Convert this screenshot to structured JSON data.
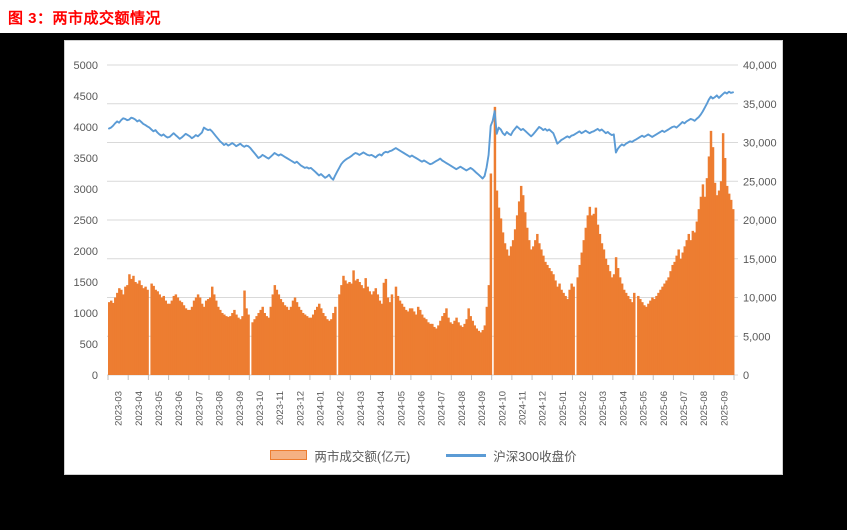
{
  "page": {
    "title": "图 3：两市成交额情况",
    "title_color": "#FF0000",
    "outside_background": "#000000",
    "card_background": "#FFFFFF"
  },
  "chart_data": {
    "type": "bar",
    "subtype": "combo-bar-line-dual-axis",
    "title": "两市成交额情况",
    "grid": "horizontal-only",
    "legend_position": "bottom-center",
    "colors": {
      "bar": "#ED7D31",
      "line": "#5B9BD5",
      "axis_text": "#595959",
      "gridline": "#D9D9D9",
      "tick": "#BFBFBF"
    },
    "left_axis": {
      "min": 0,
      "max": 5000,
      "step": 500,
      "ticks": [
        "0",
        "500",
        "1000",
        "1500",
        "2000",
        "2500",
        "3000",
        "3500",
        "4000",
        "4500",
        "5000"
      ]
    },
    "right_axis": {
      "min": 0,
      "max": 40000,
      "step": 5000,
      "ticks": [
        "0",
        "5,000",
        "10,000",
        "15,000",
        "20,000",
        "25,000",
        "30,000",
        "35,000",
        "40,000"
      ]
    },
    "months": [
      "2023-03",
      "2023-04",
      "2023-05",
      "2023-06",
      "2023-07",
      "2023-08",
      "2023-09",
      "2023-10",
      "2023-11",
      "2023-12",
      "2024-01",
      "2024-02",
      "2024-03",
      "2024-04",
      "2024-05",
      "2024-06",
      "2024-07",
      "2024-08",
      "2024-09",
      "2024-10",
      "2024-11",
      "2024-12",
      "2025-01",
      "2025-02",
      "2025-03",
      "2025-04",
      "2025-05",
      "2025-06",
      "2025-07",
      "2025-08",
      "2025-09"
    ],
    "series": [
      {
        "name": "两市成交额(亿元)",
        "type": "bar",
        "axis": "right",
        "color": "#ED7D31",
        "values_by_month": [
          [
            9400,
            9600,
            9300,
            10000,
            10600,
            11200,
            11000,
            10400,
            11400,
            11600
          ],
          [
            13000,
            12400,
            12800,
            12000,
            11800,
            12200,
            11600,
            11200,
            11400,
            11000
          ],
          [
            null,
            11800,
            11500,
            11000,
            10800,
            10400,
            10000,
            10200,
            9600,
            9200
          ],
          [
            9200,
            9600,
            10200,
            10400,
            10000,
            9600,
            9400,
            9000,
            8600,
            8400
          ],
          [
            8400,
            8800,
            9600,
            10000,
            10400,
            10000,
            9200,
            8800,
            9600,
            9800
          ],
          [
            10000,
            11400,
            10400,
            9600,
            8800,
            8400,
            8000,
            7800,
            7600,
            7500
          ],
          [
            7600,
            8000,
            8400,
            7800,
            7400,
            7200,
            7600,
            10900,
            8600,
            7800
          ],
          [
            null,
            6800,
            7200,
            7600,
            8000,
            8400,
            8800,
            8000,
            7600,
            7400
          ],
          [
            8800,
            10400,
            11600,
            11000,
            10400,
            9800,
            9400,
            9000,
            8800,
            8400
          ],
          [
            8800,
            9600,
            10000,
            9400,
            8800,
            8400,
            8000,
            7800,
            7600,
            7400
          ],
          [
            7400,
            7800,
            8400,
            8800,
            9200,
            8600,
            8000,
            7600,
            7200,
            7000
          ],
          [
            7200,
            8000,
            8800,
            null,
            10400,
            11600,
            12800,
            12200,
            11800,
            12000
          ],
          [
            11800,
            13500,
            12200,
            12400,
            12000,
            11600,
            11200,
            12500,
            11400,
            10800
          ],
          [
            10400,
            10800,
            11200,
            10400,
            9600,
            9200,
            11900,
            12400,
            10000,
            9400
          ],
          [
            10400,
            null,
            11400,
            10200,
            9600,
            9200,
            8800,
            8400,
            8200,
            8600
          ],
          [
            8600,
            8200,
            7800,
            8800,
            8400,
            7800,
            7400,
            7200,
            6800,
            6600
          ],
          [
            6600,
            6200,
            6000,
            6400,
            7000,
            7600,
            8000,
            8600,
            7400,
            6800
          ],
          [
            6600,
            7000,
            7400,
            6800,
            6400,
            6200,
            6600,
            7200,
            8600,
            7600
          ],
          [
            7000,
            6400,
            6000,
            5700,
            5500,
            5800,
            6400,
            8800,
            11600,
            26000
          ],
          [
            null,
            34600,
            23800,
            21600,
            20200,
            18400,
            17000,
            16200,
            15400,
            16600
          ],
          [
            17400,
            18800,
            20600,
            22400,
            24400,
            23200,
            21000,
            19000,
            17400,
            16200
          ],
          [
            16600,
            17400,
            18200,
            17000,
            16200,
            15400,
            14600,
            14200,
            13800,
            13400
          ],
          [
            13000,
            12200,
            11400,
            11800,
            11000,
            10600,
            10200,
            9800,
            11000,
            11800
          ],
          [
            11400,
            null,
            12600,
            14200,
            15800,
            17400,
            19000,
            20600,
            21700,
            20600
          ],
          [
            20800,
            21600,
            19400,
            18200,
            17000,
            16200,
            15000,
            14200,
            13400,
            12600
          ],
          [
            13000,
            15200,
            13800,
            12600,
            11800,
            11000,
            10600,
            10200,
            9800,
            9400
          ],
          [
            10600,
            null,
            10200,
            9800,
            9400,
            9000,
            8800,
            9200,
            9600,
            10000
          ],
          [
            9800,
            10200,
            10600,
            11000,
            11400,
            11800,
            12200,
            12600,
            13400,
            14200
          ],
          [
            14600,
            15400,
            16200,
            15000,
            15800,
            16600,
            17400,
            18200,
            17400,
            18600
          ],
          [
            18400,
            19800,
            21400,
            23000,
            24600,
            23000,
            25400,
            28200,
            31500,
            29400
          ],
          [
            24800,
            23200,
            23800,
            25000,
            31200,
            28000,
            24400,
            23400,
            22600,
            21400
          ]
        ]
      },
      {
        "name": "沪深300收盘价",
        "type": "line",
        "axis": "left",
        "color": "#5B9BD5",
        "values_by_month": [
          [
            3975,
            3990,
            4020,
            4060,
            4090,
            4070,
            4110,
            4140,
            4130,
            4110
          ],
          [
            4120,
            4150,
            4140,
            4120,
            4090,
            4110,
            4080,
            4050,
            4030,
            4010
          ],
          [
            3990,
            3960,
            3930,
            3950,
            3910,
            3880,
            3860,
            3880,
            3850,
            3830
          ],
          [
            3840,
            3870,
            3900,
            3870,
            3840,
            3810,
            3830,
            3860,
            3890,
            3870
          ],
          [
            3850,
            3820,
            3840,
            3870,
            3850,
            3880,
            3910,
            3990,
            3970,
            3950
          ],
          [
            3960,
            3930,
            3890,
            3850,
            3810,
            3770,
            3740,
            3710,
            3730,
            3700
          ],
          [
            3720,
            3740,
            3720,
            3690,
            3710,
            3730,
            3700,
            3680,
            3700,
            3690
          ],
          [
            3660,
            3620,
            3580,
            3540,
            3500,
            3520,
            3550,
            3530,
            3510,
            3490
          ],
          [
            3520,
            3550,
            3580,
            3560,
            3540,
            3560,
            3540,
            3520,
            3500,
            3480
          ],
          [
            3460,
            3440,
            3420,
            3440,
            3410,
            3380,
            3360,
            3340,
            3350,
            3330
          ],
          [
            3340,
            3310,
            3280,
            3250,
            3220,
            3240,
            3210,
            3180,
            3200,
            3230
          ],
          [
            3180,
            3150,
            3220,
            3280,
            3340,
            3400,
            3440,
            3470,
            3490,
            3510
          ],
          [
            3530,
            3560,
            3580,
            3570,
            3550,
            3570,
            3590,
            3570,
            3550,
            3540
          ],
          [
            3550,
            3530,
            3510,
            3540,
            3560,
            3540,
            3580,
            3600,
            3590,
            3610
          ],
          [
            3620,
            3640,
            3660,
            3640,
            3620,
            3600,
            3580,
            3560,
            3540,
            3520
          ],
          [
            3540,
            3520,
            3500,
            3480,
            3460,
            3440,
            3460,
            3440,
            3420,
            3400
          ],
          [
            3410,
            3430,
            3450,
            3470,
            3490,
            3460,
            3440,
            3420,
            3400,
            3380
          ],
          [
            3360,
            3340,
            3320,
            3340,
            3360,
            3340,
            3320,
            3300,
            3320,
            3340
          ],
          [
            3320,
            3290,
            3260,
            3230,
            3200,
            3170,
            3210,
            3350,
            3550,
            4017
          ],
          [
            4100,
            4256,
            3890,
            3990,
            3960,
            3900,
            3870,
            3920,
            3890,
            3870
          ],
          [
            3930,
            3970,
            4010,
            3980,
            3950,
            3970,
            3940,
            3910,
            3880,
            3850
          ],
          [
            3880,
            3920,
            3960,
            4000,
            3980,
            3950,
            3970,
            3940,
            3960,
            3930
          ],
          [
            3900,
            3820,
            3730,
            3760,
            3790,
            3810,
            3830,
            3850,
            3830,
            3860
          ],
          [
            3870,
            3890,
            3910,
            3930,
            3900,
            3920,
            3940,
            3920,
            3900,
            3920
          ],
          [
            3930,
            3950,
            3970,
            3940,
            3960,
            3930,
            3900,
            3920,
            3890,
            3870
          ],
          [
            3880,
            3589,
            3650,
            3690,
            3720,
            3700,
            3730,
            3750,
            3770,
            3760
          ],
          [
            3780,
            3800,
            3820,
            3840,
            3860,
            3840,
            3860,
            3880,
            3860,
            3840
          ],
          [
            3860,
            3880,
            3900,
            3920,
            3940,
            3920,
            3940,
            3960,
            3980,
            4000
          ],
          [
            4010,
            3990,
            4020,
            4050,
            4080,
            4060,
            4090,
            4110,
            4130,
            4120
          ],
          [
            4100,
            4130,
            4160,
            4200,
            4250,
            4310,
            4370,
            4440,
            4490,
            4460
          ],
          [
            4480,
            4510,
            4470,
            4500,
            4530,
            4560,
            4540,
            4570,
            4550,
            4560
          ]
        ]
      }
    ]
  }
}
